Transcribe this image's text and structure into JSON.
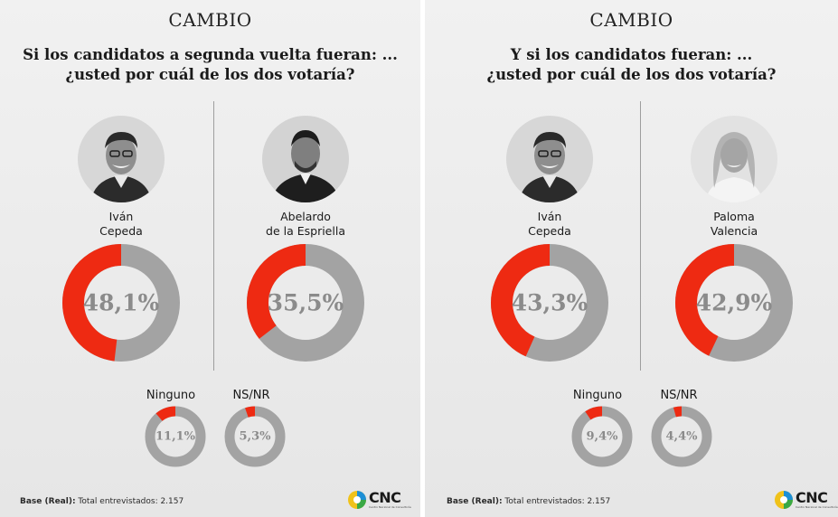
{
  "colors": {
    "filled": "#ee2a12",
    "track": "#a3a3a3",
    "text": "#8b8b8b"
  },
  "panels": [
    {
      "brand": "CAMBIO",
      "question_line1": "Si los candidatos a segunda vuelta fueran: ...",
      "question_line2": "¿usted por cuál de los dos votaría?",
      "candidates": [
        {
          "name_line1": "Iván",
          "name_line2": "Cepeda",
          "value": 48.1,
          "label": "48,1%"
        },
        {
          "name_line1": "Abelardo",
          "name_line2": "de la Espriella",
          "value": 35.5,
          "label": "35,5%"
        }
      ],
      "others": [
        {
          "name": "Ninguno",
          "value": 11.1,
          "label": "11,1%"
        },
        {
          "name": "NS/NR",
          "value": 5.3,
          "label": "5,3%"
        }
      ],
      "base_bold": "Base (Real):",
      "base_text": " Total entrevistados: 2.157",
      "logo": "CNC",
      "logo_sub": "Centro Nacional de Consultoría"
    },
    {
      "brand": "CAMBIO",
      "question_line1": "Y si los candidatos fueran: ...",
      "question_line2": "¿usted por cuál de los dos votaría?",
      "candidates": [
        {
          "name_line1": "Iván",
          "name_line2": "Cepeda",
          "value": 43.3,
          "label": "43,3%"
        },
        {
          "name_line1": "Paloma",
          "name_line2": "Valencia",
          "value": 42.9,
          "label": "42,9%"
        }
      ],
      "others": [
        {
          "name": "Ninguno",
          "value": 9.4,
          "label": "9,4%"
        },
        {
          "name": "NS/NR",
          "value": 4.4,
          "label": "4,4%"
        }
      ],
      "base_bold": "Base (Real):",
      "base_text": " Total entrevistados: 2.157",
      "logo": "CNC",
      "logo_sub": "Centro Nacional de Consultoría"
    }
  ],
  "chart_data": [
    {
      "type": "pie",
      "title": "Si los candidatos a segunda vuelta fueran: ... ¿usted por cuál de los dos votaría?",
      "categories": [
        "Iván Cepeda",
        "Abelardo de la Espriella",
        "Ninguno",
        "NS/NR"
      ],
      "values": [
        48.1,
        35.5,
        11.1,
        5.3
      ],
      "unit": "%"
    },
    {
      "type": "pie",
      "title": "Y si los candidatos fueran: ... ¿usted por cuál de los dos votaría?",
      "categories": [
        "Iván Cepeda",
        "Paloma Valencia",
        "Ninguno",
        "NS/NR"
      ],
      "values": [
        43.3,
        42.9,
        9.4,
        4.4
      ],
      "unit": "%"
    }
  ]
}
